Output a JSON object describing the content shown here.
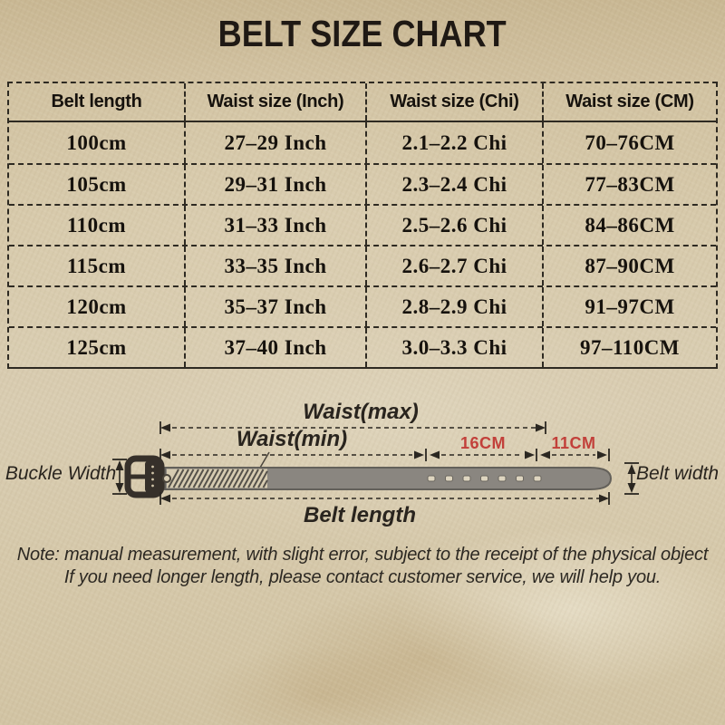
{
  "title": "BELT SIZE CHART",
  "chart_data": {
    "type": "table",
    "title": "BELT SIZE CHART",
    "columns": [
      "Belt length",
      "Waist size (Inch)",
      "Waist size (Chi)",
      "Waist size (CM)"
    ],
    "rows": [
      [
        "100cm",
        "27–29 Inch",
        "2.1–2.2 Chi",
        "70–76CM"
      ],
      [
        "105cm",
        "29–31 Inch",
        "2.3–2.4 Chi",
        "77–83CM"
      ],
      [
        "110cm",
        "31–33 Inch",
        "2.5–2.6 Chi",
        "84–86CM"
      ],
      [
        "115cm",
        "33–35 Inch",
        "2.6–2.7 Chi",
        "87–90CM"
      ],
      [
        "120cm",
        "35–37 Inch",
        "2.8–2.9 Chi",
        "91–97CM"
      ],
      [
        "125cm",
        "37–40 Inch",
        "3.0–3.3 Chi",
        "97–110CM"
      ]
    ]
  },
  "diagram": {
    "waist_max_label": "Waist(max)",
    "waist_min_label": "Waist(min)",
    "segment_16_label": "16CM",
    "segment_11_label": "11CM",
    "buckle_width_label": "Buckle Width",
    "belt_width_label": "Belt width",
    "belt_length_label": "Belt length",
    "hole_count": 7
  },
  "note": {
    "line1": "Note: manual measurement, with slight error, subject to the receipt of the physical object",
    "line2": "If you need longer length, please contact customer service, we will help you."
  },
  "colors": {
    "accent_red": "#c2403a",
    "ink": "#221c15",
    "parchment": "#d3c3a4",
    "belt_gray": "#8a8680",
    "buckle_dark": "#36302a"
  }
}
